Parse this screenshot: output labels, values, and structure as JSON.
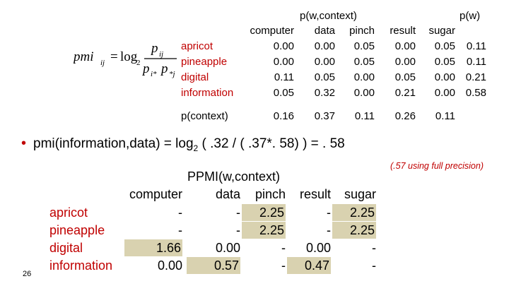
{
  "top_table": {
    "group_header": "p(w,context)",
    "pw_header": "p(w)",
    "columns": [
      "computer",
      "data",
      "pinch",
      "result",
      "sugar"
    ],
    "rows": [
      {
        "label": "apricot",
        "values": [
          "0.00",
          "0.00",
          "0.05",
          "0.00",
          "0.05"
        ],
        "pw": "0.11"
      },
      {
        "label": "pineapple",
        "values": [
          "0.00",
          "0.00",
          "0.05",
          "0.00",
          "0.05"
        ],
        "pw": "0.11"
      },
      {
        "label": "digital",
        "values": [
          "0.11",
          "0.05",
          "0.00",
          "0.05",
          "0.00"
        ],
        "pw": "0.21"
      },
      {
        "label": "information",
        "values": [
          "0.05",
          "0.32",
          "0.00",
          "0.21",
          "0.00"
        ],
        "pw": "0.58"
      }
    ],
    "pcontext_label": "p(context)",
    "pcontext_values": [
      "0.16",
      "0.37",
      "0.11",
      "0.26",
      "0.11"
    ]
  },
  "formula": {
    "lhs": "pmi",
    "lhs_sub": "ij",
    "log": "log",
    "log_sub": "2",
    "num": "p",
    "num_sub": "ij",
    "den_a": "p",
    "den_a_sub": "i*",
    "den_b": "p",
    "den_b_sub": "*j"
  },
  "bullet": {
    "text_before": "pmi(information,data) = log",
    "sub": "2",
    "text_after": " ( .32 /   ( .37*. 58) ) = . 58"
  },
  "note": "(.57 using full precision)",
  "ppmi_table": {
    "title": "PPMI(w,context)",
    "columns": [
      "computer",
      "data",
      "pinch",
      "result",
      "sugar"
    ],
    "rows": [
      {
        "label": "apricot",
        "values": [
          "-",
          "-",
          "2.25",
          "-",
          "2.25"
        ]
      },
      {
        "label": "pineapple",
        "values": [
          "-",
          "-",
          "2.25",
          "-",
          "2.25"
        ]
      },
      {
        "label": "digital",
        "values": [
          "1.66",
          "0.00",
          "-",
          "0.00",
          "-"
        ]
      },
      {
        "label": "information",
        "values": [
          "0.00",
          "0.57",
          "-",
          "0.47",
          "-"
        ]
      }
    ],
    "highlight": [
      [
        false,
        false,
        true,
        false,
        true
      ],
      [
        false,
        false,
        true,
        false,
        true
      ],
      [
        true,
        false,
        false,
        false,
        false
      ],
      [
        false,
        true,
        false,
        true,
        false
      ]
    ],
    "highlight_color": "#d9d2b0"
  },
  "page_number": "26",
  "colors": {
    "label_red": "#c00000"
  }
}
